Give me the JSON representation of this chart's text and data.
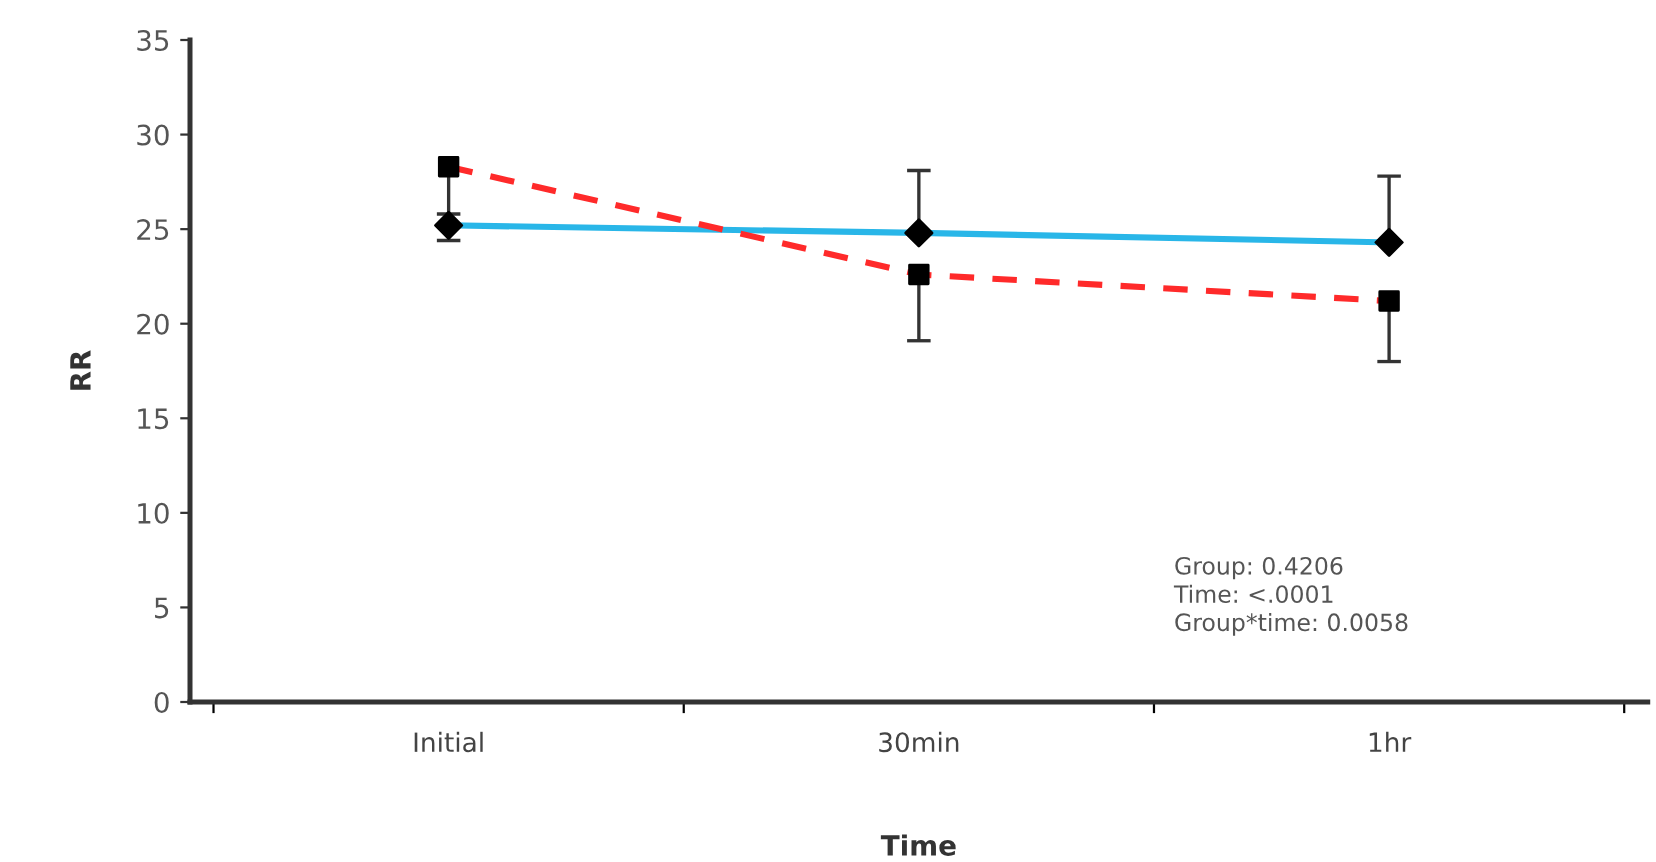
{
  "chart_data": {
    "type": "line",
    "xlabel": "Time",
    "ylabel": "RR",
    "categories": [
      "Initial",
      "30min",
      "1hr"
    ],
    "series": [
      {
        "color": "#29b6e8",
        "marker": "diamond",
        "line_style": "solid",
        "values": [
          25.2,
          24.8,
          24.3
        ],
        "errors": [
          [
            24.4,
            25.2
          ],
          [
            24.8,
            28.1
          ],
          [
            24.3,
            27.8
          ]
        ]
      },
      {
        "color": "#ff2a2a",
        "marker": "square",
        "line_style": "dashed",
        "values": [
          28.3,
          22.6,
          21.2
        ],
        "errors": [
          [
            25.8,
            28.3
          ],
          [
            19.1,
            22.6
          ],
          [
            18.0,
            21.2
          ]
        ]
      }
    ],
    "ylim": [
      0,
      35
    ],
    "yticks": [
      0,
      5,
      10,
      15,
      20,
      25,
      30,
      35
    ],
    "grid": false,
    "legend": false,
    "annotations": [
      "Group: 0.4206\nTime: <.0001\nGroup*time: 0.0058"
    ]
  }
}
